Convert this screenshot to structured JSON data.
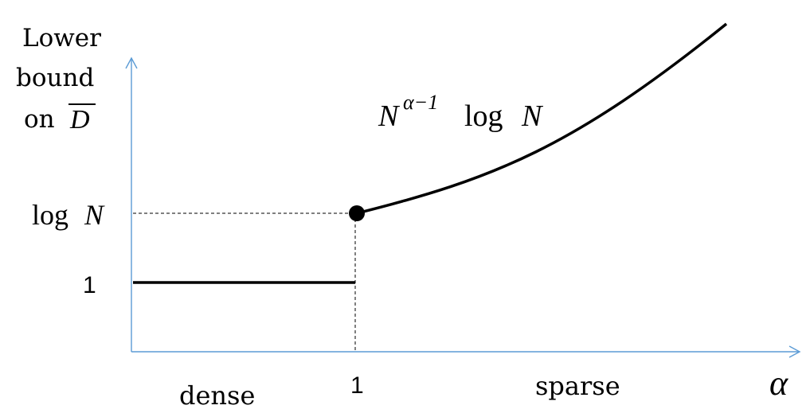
{
  "ylabel": {
    "line1": "Lower",
    "line2": "bound",
    "line3_prefix": "on",
    "line3_symbol": "D"
  },
  "ytick_log_prefix": "log",
  "ytick_log_var": "N",
  "ytick_one": "1",
  "xtick_one": "1",
  "region_left": "dense",
  "region_right": "sparse",
  "xlabel": "α",
  "curve_label": {
    "base": "N",
    "exponent": "α−1",
    "log": "log",
    "var": "N"
  },
  "colors": {
    "axis": "#5b9bd5",
    "curve": "#000000",
    "guide": "#000000"
  }
}
